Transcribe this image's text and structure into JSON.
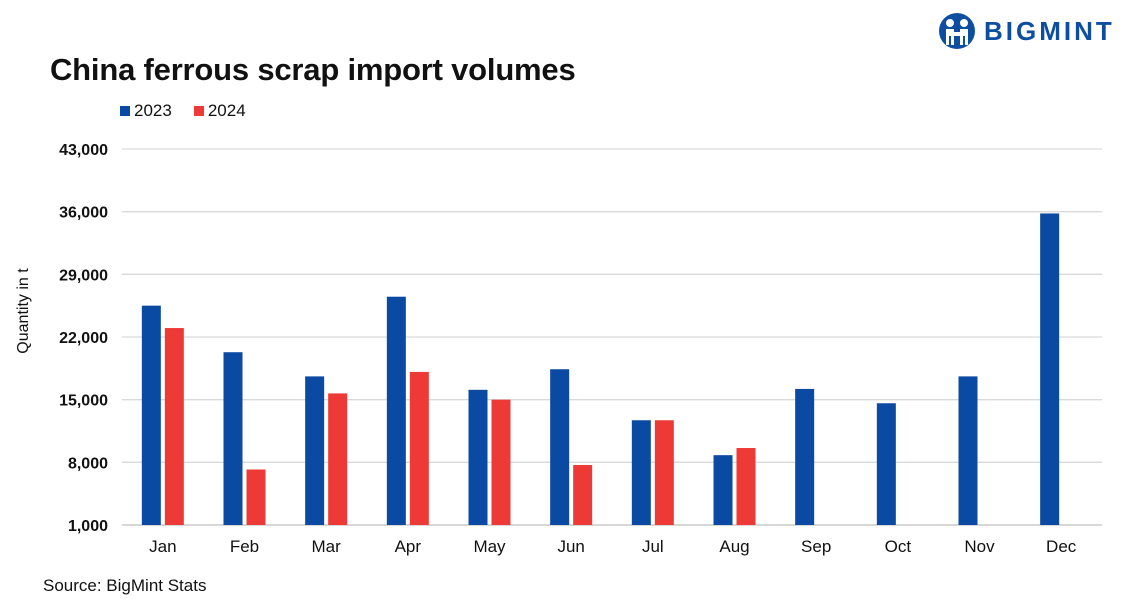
{
  "brand": {
    "name": "BIGMINT",
    "logo_icon": "people-circle-icon",
    "color": "#0e4ea0"
  },
  "source": "Source: BigMint Stats",
  "chart_data": {
    "type": "bar",
    "title": "China ferrous scrap import volumes",
    "ylabel": "Quantity in t",
    "xlabel": "",
    "ylim": [
      1000,
      43000
    ],
    "yticks": [
      1000,
      8000,
      15000,
      22000,
      29000,
      36000,
      43000
    ],
    "ytick_labels": [
      "1,000",
      "8,000",
      "15,000",
      "22,000",
      "29,000",
      "36,000",
      "43,000"
    ],
    "grid": true,
    "legend_position": "top-left",
    "categories": [
      "Jan",
      "Feb",
      "Mar",
      "Apr",
      "May",
      "Jun",
      "Jul",
      "Aug",
      "Sep",
      "Oct",
      "Nov",
      "Dec"
    ],
    "series": [
      {
        "name": "2023",
        "color": "#0b4aa2",
        "values": [
          25500,
          20300,
          17600,
          26500,
          16100,
          18400,
          12700,
          8800,
          16200,
          14600,
          17600,
          35800
        ]
      },
      {
        "name": "2024",
        "color": "#ee3a36",
        "values": [
          23000,
          7200,
          15700,
          18100,
          15000,
          7700,
          12700,
          9600,
          null,
          null,
          null,
          null
        ]
      }
    ]
  }
}
